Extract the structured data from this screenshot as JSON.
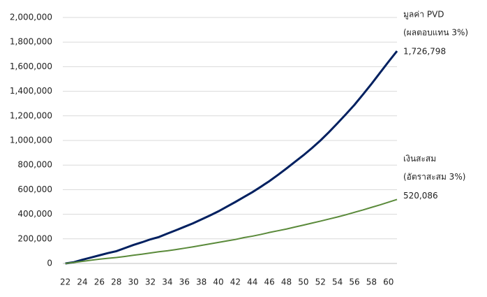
{
  "chart_data": {
    "type": "line",
    "x": [
      22,
      23,
      24,
      25,
      26,
      27,
      28,
      29,
      30,
      31,
      32,
      33,
      34,
      35,
      36,
      37,
      38,
      39,
      40,
      41,
      42,
      43,
      44,
      45,
      46,
      47,
      48,
      49,
      50,
      51,
      52,
      53,
      54,
      55,
      56,
      57,
      58,
      59,
      60,
      61
    ],
    "series": [
      {
        "name": "มูลค่า PVD",
        "note": "(ผลตอบแทน 3%)",
        "color": "#002060",
        "values": [
          0,
          10000,
          30000,
          48000,
          66000,
          84000,
          100000,
          125000,
          150000,
          172000,
          196000,
          215000,
          243000,
          270000,
          298000,
          326000,
          358000,
          390000,
          424000,
          462000,
          500000,
          540000,
          580000,
          624000,
          670000,
          720000,
          772000,
          826000,
          880000,
          938000,
          1000000,
          1068000,
          1140000,
          1214000,
          1290000,
          1374000,
          1460000,
          1550000,
          1640000,
          1726798
        ],
        "value_labels": [
          null,
          null,
          null,
          null,
          null,
          null,
          null,
          null,
          null,
          null,
          null,
          null,
          null,
          null,
          null,
          null,
          null,
          null,
          null,
          null,
          null,
          null,
          null,
          null,
          null,
          null,
          null,
          null,
          null,
          null,
          null,
          null,
          null,
          null,
          null,
          null,
          null,
          null,
          null,
          "1,726,798"
        ]
      },
      {
        "name": "เงินสะสม",
        "note": "(อัตราสะสม 3%)",
        "color": "#5a8a3a",
        "values": [
          0,
          8000,
          17000,
          26000,
          35000,
          42000,
          48000,
          57000,
          67000,
          75000,
          85000,
          95000,
          103000,
          113000,
          124000,
          135000,
          147000,
          159000,
          171000,
          183000,
          195000,
          210000,
          222000,
          236000,
          252000,
          266000,
          280000,
          296000,
          312000,
          328000,
          344000,
          361000,
          378000,
          396000,
          416000,
          435000,
          456000,
          476000,
          498000,
          520086
        ],
        "value_labels": [
          null,
          null,
          null,
          null,
          null,
          null,
          null,
          null,
          null,
          null,
          null,
          null,
          null,
          null,
          null,
          null,
          null,
          null,
          null,
          null,
          null,
          null,
          null,
          null,
          null,
          null,
          null,
          null,
          null,
          null,
          null,
          null,
          null,
          null,
          null,
          null,
          null,
          null,
          null,
          "520,086"
        ]
      }
    ],
    "xlim": [
      21.7,
      61
    ],
    "xticks": [
      22,
      24,
      26,
      28,
      30,
      32,
      34,
      36,
      38,
      40,
      42,
      44,
      46,
      48,
      50,
      52,
      54,
      56,
      58,
      60
    ],
    "ylim": [
      0,
      2000000
    ],
    "yticks": [
      0,
      {
        "value": 200000,
        "label": "200,000"
      },
      {
        "value": 400000,
        "label": "400,000"
      },
      {
        "value": 600000,
        "label": "600,000"
      },
      {
        "value": 800000,
        "label": "800,000"
      },
      {
        "value": 1000000,
        "label": "1,000,000"
      },
      {
        "value": 1200000,
        "label": "1,200,000"
      },
      {
        "value": 1400000,
        "label": "1,400,000"
      },
      {
        "value": 1600000,
        "label": "1,600,000"
      },
      {
        "value": 1800000,
        "label": "1,800,000"
      },
      {
        "value": 2000000,
        "label": "2,000,000"
      }
    ],
    "grid": true
  }
}
